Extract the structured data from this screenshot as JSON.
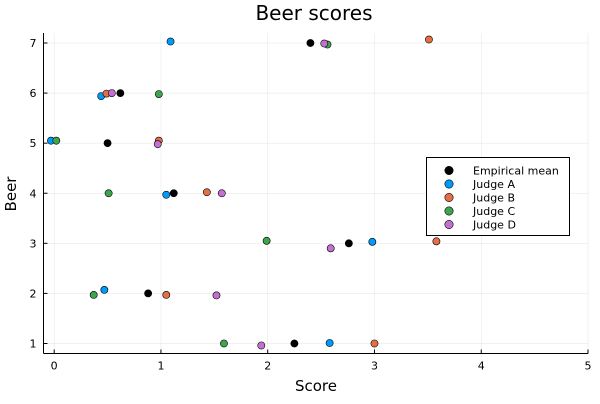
{
  "chart_data": {
    "type": "scatter",
    "title": "Beer scores",
    "xlabel": "Score",
    "ylabel": "Beer",
    "xlim": [
      -0.1,
      5
    ],
    "ylim": [
      0.8,
      7.2
    ],
    "x_ticks": [
      0,
      1,
      2,
      3,
      4,
      5
    ],
    "y_ticks": [
      1,
      2,
      3,
      4,
      5,
      6,
      7
    ],
    "grid": true,
    "legend_position": "right",
    "series": [
      {
        "name": "Empirical mean",
        "color": "#000000",
        "points": [
          {
            "x": 2.25,
            "y": 1.0
          },
          {
            "x": 0.88,
            "y": 2.0
          },
          {
            "x": 2.76,
            "y": 3.0
          },
          {
            "x": 1.12,
            "y": 4.0
          },
          {
            "x": 0.5,
            "y": 5.0
          },
          {
            "x": 0.62,
            "y": 6.0
          },
          {
            "x": 2.4,
            "y": 7.0
          }
        ]
      },
      {
        "name": "Judge A",
        "color": "#009AFA",
        "points": [
          {
            "x": 2.58,
            "y": 1.01
          },
          {
            "x": 0.47,
            "y": 2.07
          },
          {
            "x": 2.98,
            "y": 3.03
          },
          {
            "x": 1.05,
            "y": 3.97
          },
          {
            "x": -0.03,
            "y": 5.05
          },
          {
            "x": 0.44,
            "y": 5.94
          },
          {
            "x": 1.09,
            "y": 7.03
          }
        ]
      },
      {
        "name": "Judge B",
        "color": "#E36F47",
        "points": [
          {
            "x": 3.0,
            "y": 1.0
          },
          {
            "x": 1.05,
            "y": 1.97
          },
          {
            "x": 3.58,
            "y": 3.04
          },
          {
            "x": 1.43,
            "y": 4.02
          },
          {
            "x": 0.98,
            "y": 5.05
          },
          {
            "x": 0.49,
            "y": 5.99
          },
          {
            "x": 3.51,
            "y": 7.07
          }
        ]
      },
      {
        "name": "Judge C",
        "color": "#3EA44E",
        "points": [
          {
            "x": 1.59,
            "y": 1.0
          },
          {
            "x": 0.37,
            "y": 1.97
          },
          {
            "x": 1.99,
            "y": 3.05
          },
          {
            "x": 0.51,
            "y": 4.0
          },
          {
            "x": 0.02,
            "y": 5.05
          },
          {
            "x": 0.98,
            "y": 5.98
          },
          {
            "x": 2.56,
            "y": 6.97
          }
        ]
      },
      {
        "name": "Judge D",
        "color": "#C271D2",
        "points": [
          {
            "x": 1.94,
            "y": 0.96
          },
          {
            "x": 1.52,
            "y": 1.96
          },
          {
            "x": 2.59,
            "y": 2.9
          },
          {
            "x": 1.57,
            "y": 4.0
          },
          {
            "x": 0.97,
            "y": 4.98
          },
          {
            "x": 0.54,
            "y": 6.0
          },
          {
            "x": 2.53,
            "y": 6.99
          }
        ]
      }
    ]
  }
}
